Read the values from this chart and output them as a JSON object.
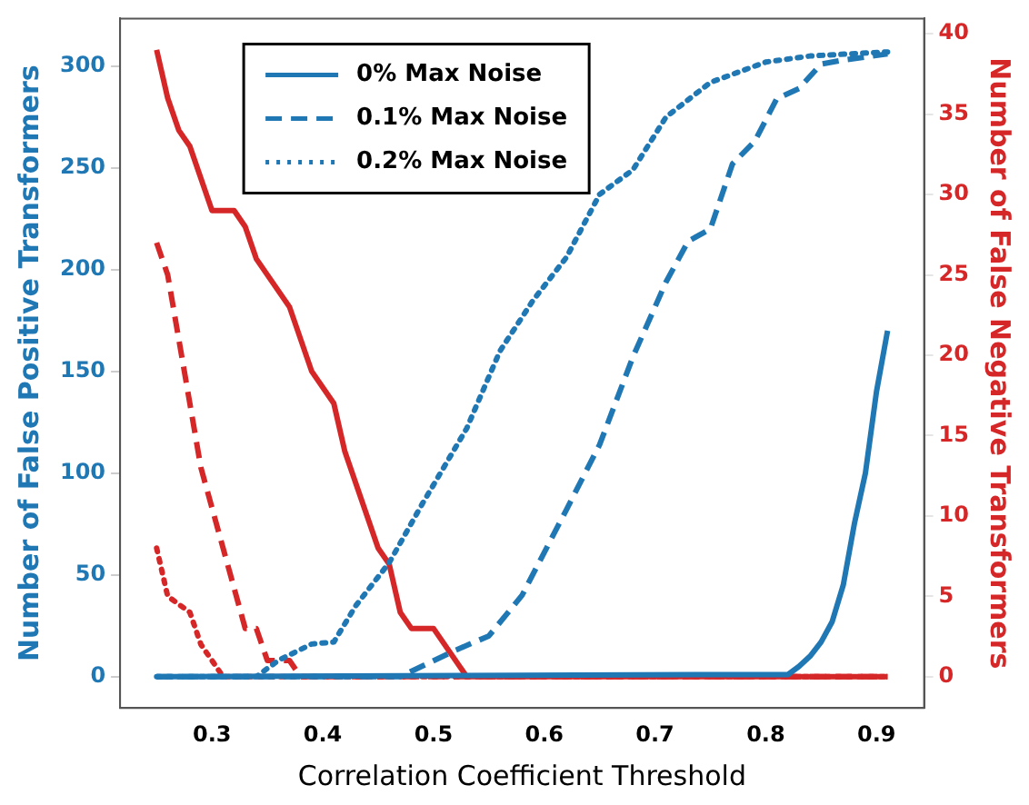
{
  "chart_data": {
    "type": "line",
    "xlabel": "Correlation Coefficient Threshold",
    "ylabel": "Number of False Positive Transformers",
    "y2label": "Number of False Negative Transformers",
    "xlim": [
      0.217,
      0.943
    ],
    "xticks": [
      0.3,
      0.4,
      0.5,
      0.6,
      0.7,
      0.8,
      0.9
    ],
    "ylim": [
      -15.4,
      323.4
    ],
    "yticks": [
      0,
      50,
      100,
      150,
      200,
      250,
      300
    ],
    "y2lim": [
      -1.95,
      40.95
    ],
    "y2ticks": [
      0,
      5,
      10,
      15,
      20,
      25,
      30,
      35,
      40
    ],
    "grid": false,
    "legend": "top left",
    "marker": "none",
    "series": [
      {
        "name": "0% Max Noise",
        "color": "#1f77b4",
        "line_style": "solid",
        "x": [
          0.25,
          0.77,
          0.82,
          0.83,
          0.84,
          0.85,
          0.86,
          0.87,
          0.88,
          0.89,
          0.9,
          0.91
        ],
        "values": [
          0,
          1,
          1,
          5,
          10,
          17,
          27,
          45,
          75,
          100,
          140,
          170
        ]
      },
      {
        "name": "0.1% Max Noise",
        "color": "#1f77b4",
        "line_style": "dashed",
        "x": [
          0.25,
          0.47,
          0.52,
          0.55,
          0.58,
          0.62,
          0.65,
          0.68,
          0.71,
          0.73,
          0.75,
          0.77,
          0.79,
          0.81,
          0.83,
          0.85,
          0.87,
          0.91
        ],
        "values": [
          0,
          0,
          13,
          20,
          40,
          82,
          114,
          157,
          194,
          214,
          220,
          252,
          263,
          284,
          289,
          301,
          303,
          306
        ]
      },
      {
        "name": "0.2% Max Noise",
        "color": "#1f77b4",
        "line_style": "dotted",
        "x": [
          0.25,
          0.34,
          0.36,
          0.39,
          0.41,
          0.43,
          0.46,
          0.49,
          0.53,
          0.56,
          0.59,
          0.62,
          0.65,
          0.68,
          0.71,
          0.75,
          0.8,
          0.84,
          0.91
        ],
        "values": [
          0,
          0,
          8,
          16,
          17,
          35,
          56,
          85,
          122,
          160,
          185,
          206,
          237,
          249,
          275,
          292,
          302,
          305,
          307
        ]
      },
      {
        "color": "#d62728",
        "line_style": "solid",
        "axis": "y2",
        "x": [
          0.25,
          0.26,
          0.27,
          0.28,
          0.3,
          0.32,
          0.33,
          0.34,
          0.37,
          0.39,
          0.41,
          0.42,
          0.45,
          0.46,
          0.47,
          0.48,
          0.5,
          0.53,
          0.91
        ],
        "values": [
          39,
          36,
          34,
          33,
          29,
          29,
          28,
          26,
          23,
          19,
          17,
          14,
          8,
          7,
          4,
          3,
          3,
          0,
          0
        ]
      },
      {
        "color": "#d62728",
        "line_style": "dashed",
        "axis": "y2",
        "x": [
          0.25,
          0.26,
          0.29,
          0.33,
          0.34,
          0.35,
          0.37,
          0.38,
          0.91
        ],
        "values": [
          27,
          25,
          13,
          3,
          3,
          1,
          1,
          0,
          0
        ]
      },
      {
        "color": "#d62728",
        "line_style": "dotted",
        "axis": "y2",
        "x": [
          0.25,
          0.26,
          0.28,
          0.29,
          0.3,
          0.31,
          0.91
        ],
        "values": [
          8,
          5,
          4,
          2,
          1,
          0,
          0
        ]
      }
    ]
  }
}
